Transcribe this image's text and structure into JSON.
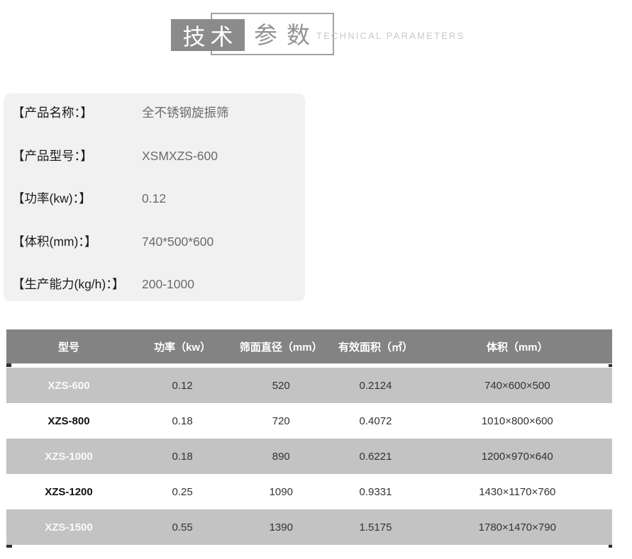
{
  "header": {
    "title_zh_primary": "技术",
    "title_zh_secondary": "参数",
    "title_en": "TECHNICAL PARAMETERS"
  },
  "product_info": {
    "rows": [
      {
        "label": "【产品名称：】",
        "value": "全不锈钢旋振筛"
      },
      {
        "label": "【产品型号：】",
        "value": "XSMXZS-600"
      },
      {
        "label": "【功率(kw)：】",
        "value": "0.12"
      },
      {
        "label": "【体积(mm)：】",
        "value": "740*500*600"
      },
      {
        "label": "【生产能力(kg/h)：】",
        "value": "200-1000"
      }
    ]
  },
  "spec_table": {
    "columns": [
      "型号",
      "功率（kw）",
      "筛面直径（mm）",
      "有效面积（㎡）",
      "体积（mm）"
    ],
    "rows": [
      {
        "model": "XZS-600",
        "power": "0.12",
        "diameter": "520",
        "area": "0.2124",
        "volume": "740×600×500"
      },
      {
        "model": "XZS-800",
        "power": "0.18",
        "diameter": "720",
        "area": "0.4072",
        "volume": "1010×800×600"
      },
      {
        "model": "XZS-1000",
        "power": "0.18",
        "diameter": "890",
        "area": "0.6221",
        "volume": "1200×970×640"
      },
      {
        "model": "XZS-1200",
        "power": "0.25",
        "diameter": "1090",
        "area": "0.9331",
        "volume": "1430×1170×760"
      },
      {
        "model": "XZS-1500",
        "power": "0.55",
        "diameter": "1390",
        "area": "1.5175",
        "volume": "1780×1470×790"
      }
    ]
  },
  "colors": {
    "title_box_bg": "#8b8b8b",
    "title_outline": "#a2a2a2",
    "title_text_gray": "#939393",
    "title_en_text": "#c9c9c9",
    "info_panel_bg": "#f1f1f1",
    "info_label_text": "#1b1b1b",
    "info_value_text": "#6b6b6b",
    "table_header_bg": "#838383",
    "table_header_text": "#ffffff",
    "table_row_gray_bg": "#c3c3c3",
    "table_cell_text": "#333333"
  }
}
